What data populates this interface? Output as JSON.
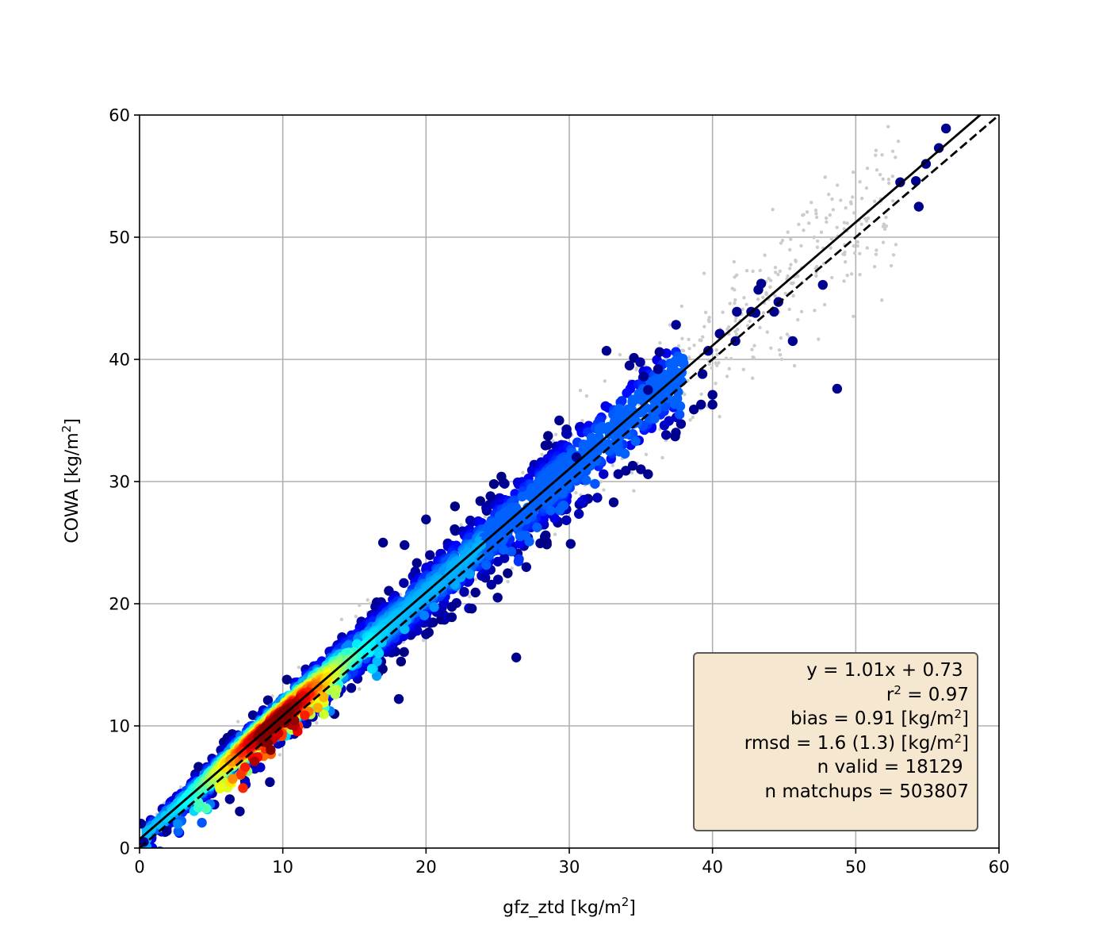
{
  "chart_data": {
    "type": "scatter",
    "xlabel": "gfz_ztd [kg/m",
    "xlabel_unit_close": "]",
    "ylabel": "COWA [kg/m",
    "ylabel_unit_close": "]",
    "superscript": "2",
    "xlim": [
      0,
      60
    ],
    "ylim": [
      0,
      60
    ],
    "x_ticks": [
      "0",
      "10",
      "20",
      "30",
      "40",
      "50",
      "60"
    ],
    "y_ticks": [
      "0",
      "10",
      "20",
      "30",
      "40",
      "50",
      "60"
    ],
    "grid": true,
    "colormap": "jet (point density)",
    "lines": [
      {
        "style": "solid",
        "color": "#000000",
        "slope": 1.01,
        "intercept": 0.73,
        "meaning": "fit"
      },
      {
        "style": "dashed",
        "color": "#000000",
        "slope": 1.0,
        "intercept": 0.0,
        "meaning": "1:1"
      }
    ],
    "background_points_color": "#cccccc",
    "outlier_points": [
      [
        56.3,
        58.9
      ],
      [
        55.8,
        57.3
      ],
      [
        54.9,
        56.0
      ],
      [
        53.1,
        54.5
      ],
      [
        54.2,
        54.6
      ],
      [
        54.4,
        52.5
      ],
      [
        47.7,
        46.1
      ],
      [
        43.4,
        46.2
      ],
      [
        43.2,
        45.7
      ],
      [
        44.6,
        44.7
      ],
      [
        42.7,
        43.9
      ],
      [
        41.7,
        43.9
      ],
      [
        43.0,
        43.8
      ],
      [
        44.3,
        43.9
      ],
      [
        45.6,
        41.5
      ],
      [
        48.7,
        37.6
      ],
      [
        40.5,
        42.1
      ],
      [
        41.6,
        41.5
      ],
      [
        39.7,
        40.7
      ],
      [
        39.3,
        38.8
      ],
      [
        40.0,
        37.1
      ],
      [
        39.2,
        36.3
      ],
      [
        40.0,
        36.3
      ],
      [
        38.7,
        35.9
      ],
      [
        32.6,
        40.7
      ],
      [
        36.3,
        40.6
      ],
      [
        36.2,
        39.2
      ],
      [
        35.2,
        38.6
      ],
      [
        35.5,
        37.5
      ],
      [
        33.1,
        28.3
      ],
      [
        35.5,
        30.6
      ],
      [
        26.3,
        15.6
      ],
      [
        18.1,
        12.2
      ],
      [
        9.1,
        5.4
      ],
      [
        7.0,
        3.0
      ],
      [
        6.3,
        4.0
      ],
      [
        1.9,
        1.4
      ],
      [
        0.1,
        2.0
      ],
      [
        0.3,
        0.5
      ],
      [
        29.3,
        35.0
      ],
      [
        20.0,
        26.9
      ],
      [
        22.0,
        26.1
      ],
      [
        28.5,
        33.0
      ],
      [
        30.5,
        32.0
      ],
      [
        35.0,
        31.0
      ],
      [
        30.1,
        24.9
      ],
      [
        27.0,
        23.0
      ],
      [
        25.0,
        20.5
      ],
      [
        23.2,
        19.6
      ],
      [
        21.8,
        18.9
      ],
      [
        20.0,
        17.5
      ],
      [
        17.0,
        25.0
      ],
      [
        18.5,
        24.8
      ],
      [
        24.5,
        28.8
      ]
    ],
    "fit_box": {
      "lines": [
        {
          "text": "y = 1.01x + 0.73"
        },
        {
          "text": "r",
          "sup": "2",
          "after": " = 0.97"
        },
        {
          "text": "bias = 0.91 [kg/m",
          "sup": "2",
          "after": "]"
        },
        {
          "text": "rmsd = 1.6 (1.3) [kg/m",
          "sup": "2",
          "after": "]"
        },
        {
          "text": "n valid = 18129"
        },
        {
          "text": "n matchups = 503807"
        }
      ],
      "background": "#f6e8d0",
      "placement": "lower-right"
    }
  }
}
